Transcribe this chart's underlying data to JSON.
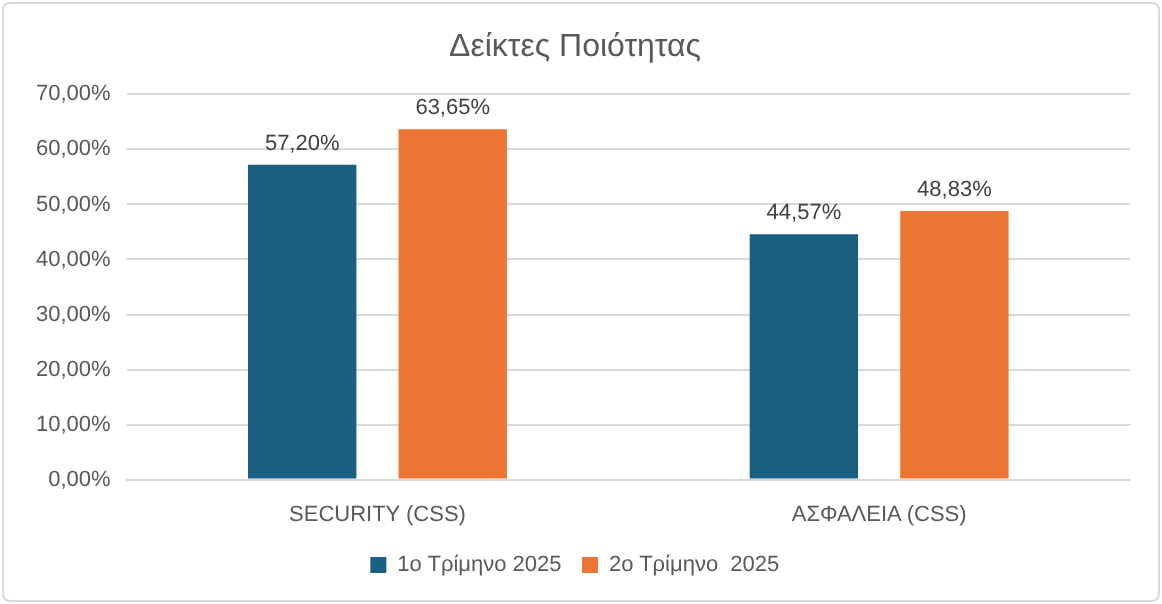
{
  "chart_data": {
    "type": "bar",
    "title": "Δείκτες Ποιότητας",
    "categories": [
      "SECURITY (CSS)",
      "ΑΣΦΑΛΕΙΑ (CSS)"
    ],
    "series": [
      {
        "name": "1ο Τρίμηνο 2025",
        "color": "#1a5e80",
        "values": [
          57.2,
          44.57
        ],
        "value_labels": [
          "57,20%",
          "44,57%"
        ]
      },
      {
        "name": "2ο Τρίμηνο  2025",
        "color": "#ec7533",
        "values": [
          63.65,
          48.83
        ],
        "value_labels": [
          "63,65%",
          "48,83%"
        ]
      }
    ],
    "ylim": [
      0,
      70
    ],
    "yticks": [
      {
        "value": 0,
        "label": "0,00%"
      },
      {
        "value": 10,
        "label": "10,00%"
      },
      {
        "value": 20,
        "label": "20,00%"
      },
      {
        "value": 30,
        "label": "30,00%"
      },
      {
        "value": 40,
        "label": "40,00%"
      },
      {
        "value": 50,
        "label": "50,00%"
      },
      {
        "value": 60,
        "label": "60,00%"
      },
      {
        "value": 70,
        "label": "70,00%"
      }
    ],
    "grid": "y",
    "legend": "bottom"
  }
}
